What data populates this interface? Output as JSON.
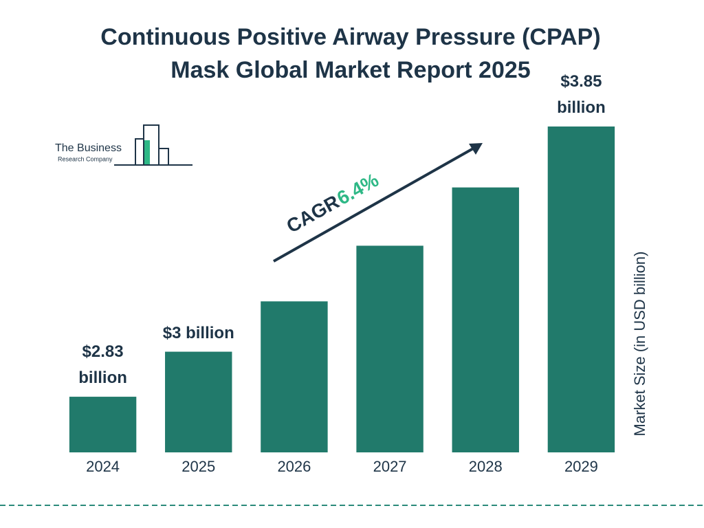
{
  "chart_data": {
    "type": "bar",
    "title": "Continuous Positive Airway Pressure (CPAP) Mask Global Market Report 2025",
    "categories": [
      "2024",
      "2025",
      "2026",
      "2027",
      "2028",
      "2029"
    ],
    "values": [
      2.83,
      3,
      3.19,
      3.4,
      3.62,
      3.85
    ],
    "value_labels": [
      "$2.83 billion",
      "$3 billion",
      null,
      null,
      null,
      "$3.85 billion"
    ],
    "color": "#217a6b",
    "ylim": [
      2.62,
      3.85
    ],
    "y_label": "Market Size (in USD billion)",
    "cagr_label": "CAGR",
    "cagr_value": "6.4%"
  },
  "logo": {
    "line1": "The Business",
    "line2": "Research Company"
  }
}
